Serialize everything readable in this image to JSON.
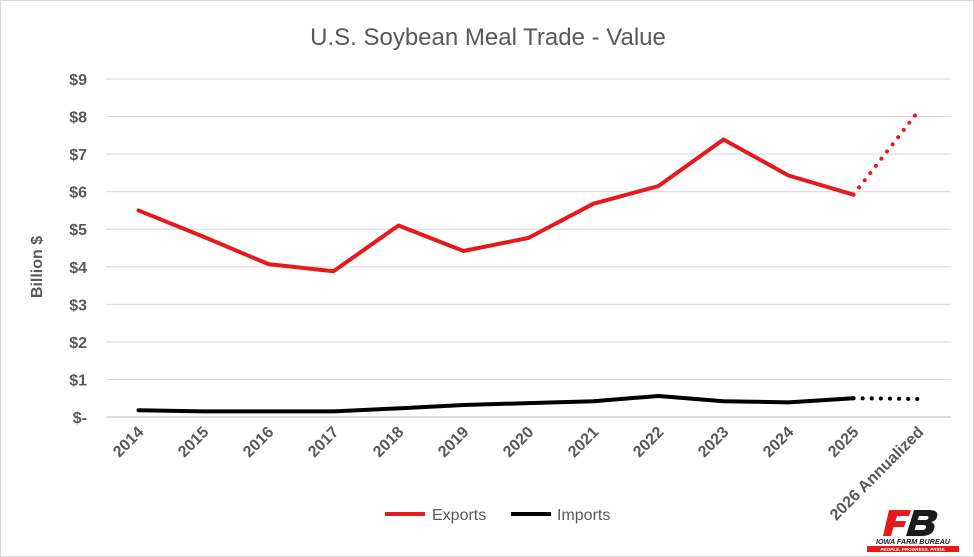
{
  "chart_data": {
    "type": "line",
    "title": "U.S. Soybean Meal Trade - Value",
    "ylabel": "Billion $",
    "xlabel": "",
    "categories": [
      "2014",
      "2015",
      "2016",
      "2017",
      "2018",
      "2019",
      "2020",
      "2021",
      "2022",
      "2023",
      "2024",
      "2025",
      "2026 Annualized"
    ],
    "y_ticks": [
      "$-",
      "$1",
      "$2",
      "$3",
      "$4",
      "$5",
      "$6",
      "$7",
      "$8",
      "$9"
    ],
    "ylim": [
      0,
      9
    ],
    "grid": true,
    "legend_position": "bottom",
    "projected_from_index": 11,
    "series": [
      {
        "name": "Exports",
        "color": "#e8191c",
        "values": [
          5.5,
          4.8,
          4.07,
          3.88,
          5.1,
          4.42,
          4.77,
          5.68,
          6.15,
          7.39,
          6.43,
          5.92,
          8.15
        ]
      },
      {
        "name": "Imports",
        "color": "#000000",
        "values": [
          0.18,
          0.15,
          0.15,
          0.15,
          0.23,
          0.32,
          0.37,
          0.42,
          0.56,
          0.42,
          0.39,
          0.5,
          0.48
        ]
      }
    ]
  },
  "logo": {
    "name": "IOWA FARM BUREAU",
    "tagline": "PEOPLE. PROGRESS. PRIDE.",
    "color": "#e8191c"
  }
}
